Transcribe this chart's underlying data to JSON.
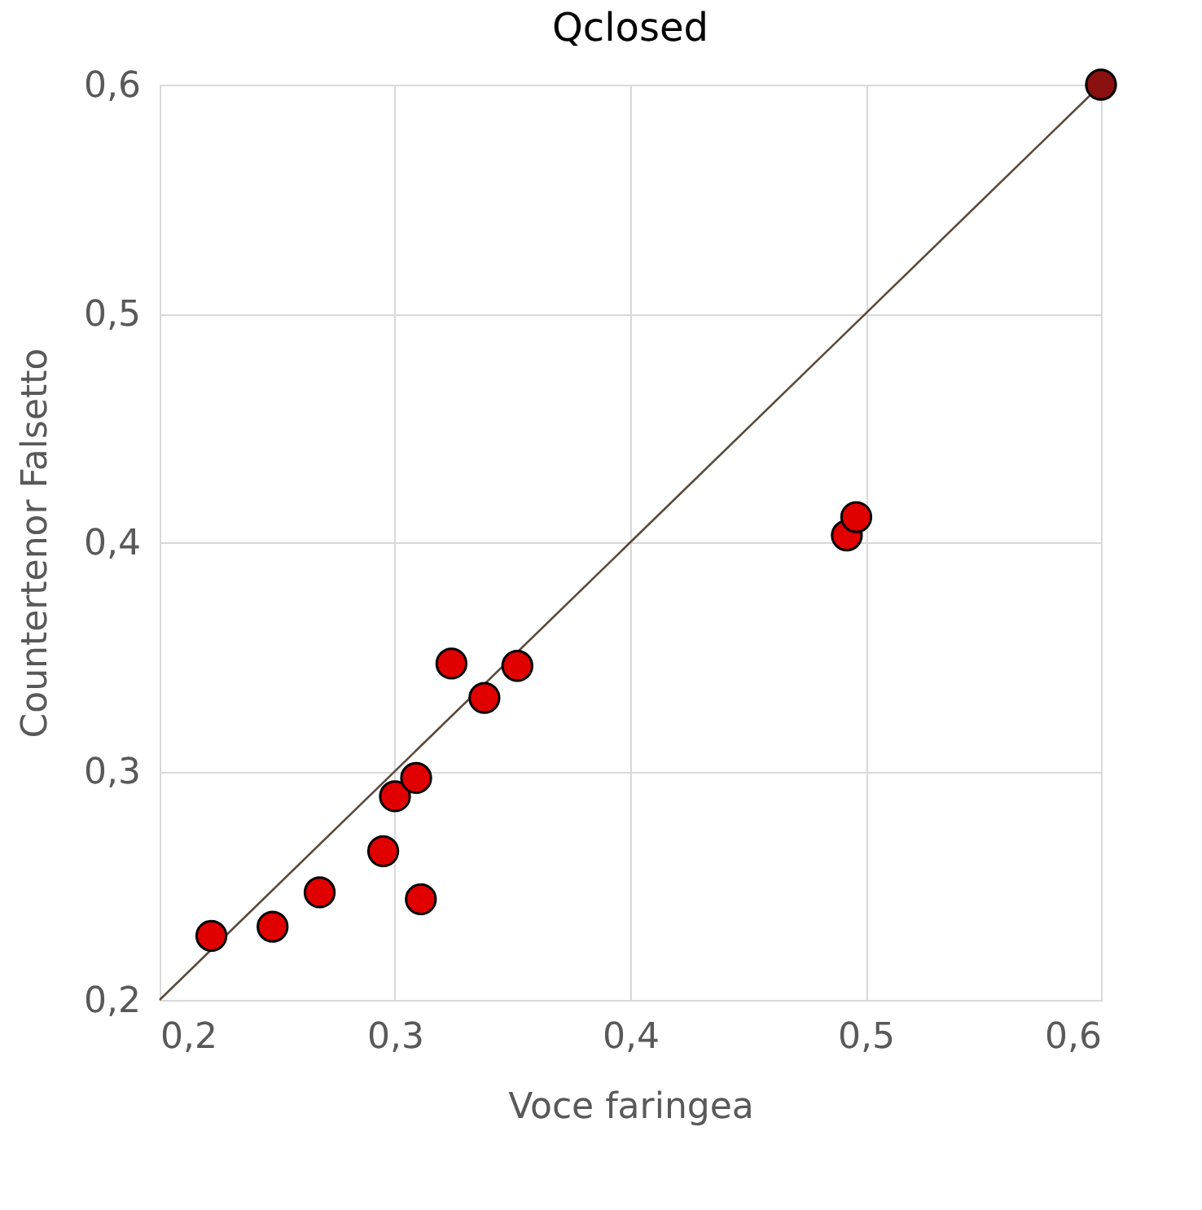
{
  "chart_data": {
    "type": "scatter",
    "title": "Qclosed",
    "xlabel": "Voce faringea",
    "ylabel": "Countertenor Falsetto",
    "xlim": [
      0.2,
      0.6
    ],
    "ylim": [
      0.2,
      0.6
    ],
    "xticks": [
      {
        "value": 0.2,
        "label": "0,2"
      },
      {
        "value": 0.3,
        "label": "0,3"
      },
      {
        "value": 0.4,
        "label": "0,4"
      },
      {
        "value": 0.5,
        "label": "0,5"
      },
      {
        "value": 0.6,
        "label": "0,6"
      }
    ],
    "yticks": [
      {
        "value": 0.2,
        "label": "0,2"
      },
      {
        "value": 0.3,
        "label": "0,3"
      },
      {
        "value": 0.4,
        "label": "0,4"
      },
      {
        "value": 0.5,
        "label": "0,5"
      },
      {
        "value": 0.6,
        "label": "0,6"
      }
    ],
    "grid": true,
    "marker": "circle",
    "series": [
      {
        "x": [
          0.222,
          0.248,
          0.268,
          0.295,
          0.311,
          0.3,
          0.309,
          0.324,
          0.338,
          0.352,
          0.492,
          0.496,
          0.6
        ],
        "values": [
          0.228,
          0.232,
          0.247,
          0.265,
          0.244,
          0.289,
          0.297,
          0.347,
          0.332,
          0.346,
          0.403,
          0.411,
          0.6
        ],
        "colors": [
          "#e00000",
          "#e00000",
          "#e00000",
          "#e00000",
          "#e00000",
          "#e00000",
          "#e00000",
          "#e00000",
          "#e00000",
          "#e00000",
          "#e00000",
          "#e00000",
          "#8b1010"
        ]
      },
      {
        "type": "line",
        "marker": "none",
        "color": "#5a4a3a",
        "x": [
          0.2,
          0.6
        ],
        "values": [
          0.2,
          0.6
        ]
      }
    ]
  }
}
